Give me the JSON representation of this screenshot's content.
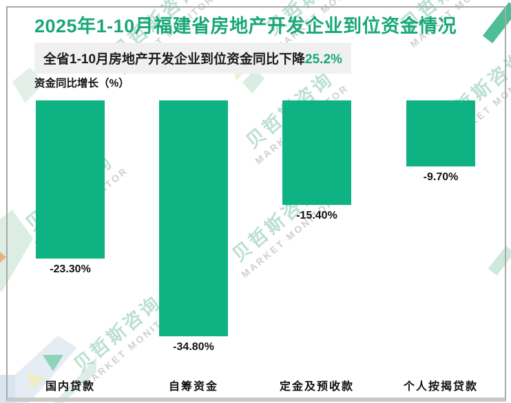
{
  "chart": {
    "title": "2025年1-10月福建省房地产开发企业到位资金情况",
    "subtitle_prefix": "全省1-10月房地产开发企业到位资金同比下降",
    "subtitle_highlight": "25.2%",
    "axis_label": "资金同比增长（%）"
  },
  "watermark": {
    "text_cn": "贝哲斯咨询",
    "text_en": "MARKET MONITOR"
  },
  "colors": {
    "bar": "#0fb283",
    "title_green": "#18a878",
    "subtitle_bg": "#f0f0f0",
    "text_black": "#111111",
    "frame_gray": "#a8a8a8"
  },
  "chart_data": {
    "type": "bar",
    "orientation": "vertical",
    "categories": [
      "国内贷款",
      "自筹资金",
      "定金及预收款",
      "个人按揭贷款"
    ],
    "values": [
      -23.3,
      -34.8,
      -15.4,
      -9.7
    ],
    "value_labels": [
      "-23.30%",
      "-34.80%",
      "-15.40%",
      "-9.70%"
    ],
    "series_name": "资金同比增长(%)",
    "title": "2025年1-10月福建省房地产开发企业到位资金情况",
    "ylabel": "资金同比增长（%）",
    "ylim": [
      -40,
      0
    ],
    "grid": false,
    "legend": "none",
    "bar_color": "#0fb283",
    "value_label_position": "below-bar",
    "baseline": "bars hang downward from zero line (all values negative)"
  }
}
